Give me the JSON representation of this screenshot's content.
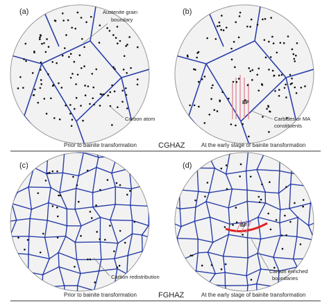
{
  "panels": [
    {
      "label": "(a)",
      "annotations": [
        {
          "lines": [
            "Austenite grain",
            "boundary"
          ]
        },
        {
          "lines": [
            "Carbon atom"
          ]
        }
      ]
    },
    {
      "label": "(b)",
      "annotations": [
        {
          "lines": [
            "BF"
          ]
        },
        {
          "lines": [
            "Carbides or MA",
            "constituents"
          ]
        }
      ]
    },
    {
      "label": "(c)",
      "annotations": [
        {
          "lines": [
            "Carbon redistribution"
          ]
        }
      ]
    },
    {
      "label": "(d)",
      "annotations": [
        {
          "lines": [
            "BF"
          ]
        },
        {
          "lines": [
            "Carbon enriched",
            "boundaries"
          ]
        }
      ]
    }
  ],
  "rows": [
    {
      "left_caption": "Prior to bainite transformation",
      "zone": "CGHAZ",
      "right_caption": "At the early stage of bainite transformation"
    },
    {
      "left_caption": "Prior to bainite transformation",
      "zone": "FGHAZ",
      "right_caption": "At the early stage of bainite transformation"
    }
  ]
}
